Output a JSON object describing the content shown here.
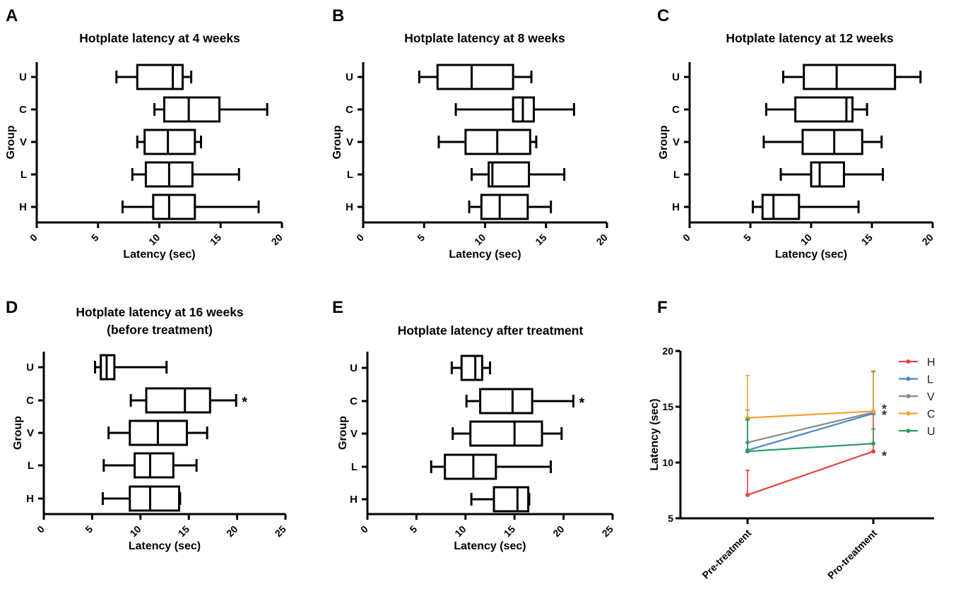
{
  "chart_data": [
    {
      "panel_letter": "A",
      "type": "boxplot",
      "title": [
        "Hotplate latency at 4 weeks"
      ],
      "xlabel": "Latency (sec)",
      "ylabel": "Group",
      "categories": [
        "U",
        "C",
        "V",
        "L",
        "H"
      ],
      "xlim": [
        0,
        20
      ],
      "xticks": [
        0,
        5,
        10,
        15,
        20
      ],
      "boxes": [
        {
          "group": "U",
          "min": 6.5,
          "q1": 8.2,
          "median": 11.1,
          "q3": 11.9,
          "max": 12.6
        },
        {
          "group": "C",
          "min": 9.6,
          "q1": 10.4,
          "median": 12.4,
          "q3": 14.9,
          "max": 18.8
        },
        {
          "group": "V",
          "min": 8.2,
          "q1": 8.8,
          "median": 10.7,
          "q3": 12.9,
          "max": 13.4
        },
        {
          "group": "L",
          "min": 7.8,
          "q1": 8.9,
          "median": 10.8,
          "q3": 12.7,
          "max": 16.5
        },
        {
          "group": "H",
          "min": 7.0,
          "q1": 9.5,
          "median": 10.8,
          "q3": 12.9,
          "max": 18.1
        }
      ],
      "annotations": []
    },
    {
      "panel_letter": "B",
      "type": "boxplot",
      "title": [
        "Hotplate latency at 8 weeks"
      ],
      "xlabel": "Latency (sec)",
      "ylabel": "Group",
      "categories": [
        "U",
        "C",
        "V",
        "L",
        "H"
      ],
      "xlim": [
        0,
        20
      ],
      "xticks": [
        0,
        5,
        10,
        15,
        20
      ],
      "boxes": [
        {
          "group": "U",
          "min": 4.6,
          "q1": 6.1,
          "median": 8.9,
          "q3": 12.3,
          "max": 13.8
        },
        {
          "group": "C",
          "min": 7.6,
          "q1": 12.3,
          "median": 13.1,
          "q3": 14.0,
          "max": 17.3
        },
        {
          "group": "V",
          "min": 6.2,
          "q1": 8.4,
          "median": 11.0,
          "q3": 13.7,
          "max": 14.2
        },
        {
          "group": "L",
          "min": 8.9,
          "q1": 10.3,
          "median": 10.6,
          "q3": 13.6,
          "max": 16.5
        },
        {
          "group": "H",
          "min": 8.7,
          "q1": 9.7,
          "median": 11.2,
          "q3": 13.5,
          "max": 15.4
        }
      ],
      "annotations": []
    },
    {
      "panel_letter": "C",
      "type": "boxplot",
      "title": [
        "Hotplate latency at 12 weeks"
      ],
      "xlabel": "Latency (sec)",
      "ylabel": "Group",
      "categories": [
        "U",
        "C",
        "V",
        "L",
        "H"
      ],
      "xlim": [
        0,
        20
      ],
      "xticks": [
        0,
        5,
        10,
        15,
        20
      ],
      "boxes": [
        {
          "group": "U",
          "min": 7.7,
          "q1": 9.4,
          "median": 12.1,
          "q3": 16.9,
          "max": 19.0
        },
        {
          "group": "C",
          "min": 6.3,
          "q1": 8.7,
          "median": 12.9,
          "q3": 13.4,
          "max": 14.6
        },
        {
          "group": "V",
          "min": 6.1,
          "q1": 9.3,
          "median": 11.9,
          "q3": 14.2,
          "max": 15.8
        },
        {
          "group": "L",
          "min": 7.5,
          "q1": 10.0,
          "median": 10.7,
          "q3": 12.7,
          "max": 15.9
        },
        {
          "group": "H",
          "min": 5.2,
          "q1": 6.0,
          "median": 6.9,
          "q3": 9.0,
          "max": 13.9
        }
      ],
      "annotations": []
    },
    {
      "panel_letter": "D",
      "type": "boxplot",
      "title": [
        "Hotplate latency at 16 weeks",
        "(before treatment)"
      ],
      "xlabel": "Latency (sec)",
      "ylabel": "Group",
      "categories": [
        "U",
        "C",
        "V",
        "L",
        "H"
      ],
      "xlim": [
        0,
        25
      ],
      "xticks": [
        0,
        5,
        10,
        15,
        20,
        25
      ],
      "boxes": [
        {
          "group": "U",
          "min": 5.3,
          "q1": 5.9,
          "median": 6.5,
          "q3": 7.3,
          "max": 12.7
        },
        {
          "group": "C",
          "min": 9.0,
          "q1": 10.6,
          "median": 14.6,
          "q3": 17.2,
          "max": 19.9
        },
        {
          "group": "V",
          "min": 6.7,
          "q1": 8.9,
          "median": 11.8,
          "q3": 14.8,
          "max": 16.9
        },
        {
          "group": "L",
          "min": 6.2,
          "q1": 9.4,
          "median": 11.0,
          "q3": 13.4,
          "max": 15.8
        },
        {
          "group": "H",
          "min": 6.1,
          "q1": 8.9,
          "median": 11.0,
          "q3": 14.0,
          "max": 14.1
        }
      ],
      "annotations": [
        {
          "group": "C",
          "text": "*"
        }
      ]
    },
    {
      "panel_letter": "E",
      "type": "boxplot",
      "title": [
        "Hotplate latency after treatment"
      ],
      "xlabel": "Latency (sec)",
      "ylabel": "Group",
      "categories": [
        "U",
        "C",
        "V",
        "L",
        "H"
      ],
      "xlim": [
        0,
        25
      ],
      "xticks": [
        0,
        5,
        10,
        15,
        20,
        25
      ],
      "boxes": [
        {
          "group": "U",
          "min": 8.6,
          "q1": 9.6,
          "median": 11.0,
          "q3": 11.7,
          "max": 12.5
        },
        {
          "group": "C",
          "min": 10.1,
          "q1": 11.5,
          "median": 14.8,
          "q3": 16.8,
          "max": 21.0
        },
        {
          "group": "V",
          "min": 8.7,
          "q1": 10.5,
          "median": 15.0,
          "q3": 17.8,
          "max": 19.8
        },
        {
          "group": "L",
          "min": 6.5,
          "q1": 7.9,
          "median": 10.8,
          "q3": 13.1,
          "max": 18.7
        },
        {
          "group": "H",
          "min": 10.6,
          "q1": 12.9,
          "median": 15.3,
          "q3": 16.4,
          "max": 16.5
        }
      ],
      "annotations": [
        {
          "group": "C",
          "text": "*"
        }
      ]
    },
    {
      "panel_letter": "F",
      "type": "line",
      "title": [],
      "ylabel": "Latency (sec)",
      "categories": [
        "Pre-treatment",
        "Pro-treatment"
      ],
      "ylim": [
        5,
        20
      ],
      "yticks": [
        5,
        10,
        15,
        20
      ],
      "series": [
        {
          "name": "H",
          "color": "#e8413a",
          "marker": "circle",
          "values": [
            7.1,
            11.0
          ],
          "err_up": [
            2.2,
            3.3
          ]
        },
        {
          "name": "L",
          "color": "#4a86c8",
          "marker": "square",
          "values": [
            11.1,
            14.4
          ],
          "err_up": [
            2.7,
            3.8
          ]
        },
        {
          "name": "V",
          "color": "#8a8a8a",
          "marker": "triangle",
          "values": [
            11.8,
            14.5
          ],
          "err_up": [
            2.9,
            3.7
          ]
        },
        {
          "name": "C",
          "color": "#f5a030",
          "marker": "triangle",
          "values": [
            14.0,
            14.6
          ],
          "err_up": [
            3.8,
            3.5
          ]
        },
        {
          "name": "U",
          "color": "#2e9a5e",
          "marker": "diamond",
          "values": [
            11.0,
            11.7
          ],
          "err_up": [
            2.9,
            1.3
          ]
        }
      ],
      "annotations": [
        {
          "series": "L",
          "text": "*"
        },
        {
          "series": "V",
          "text": "*"
        },
        {
          "series": "H",
          "text": "*"
        }
      ]
    }
  ]
}
